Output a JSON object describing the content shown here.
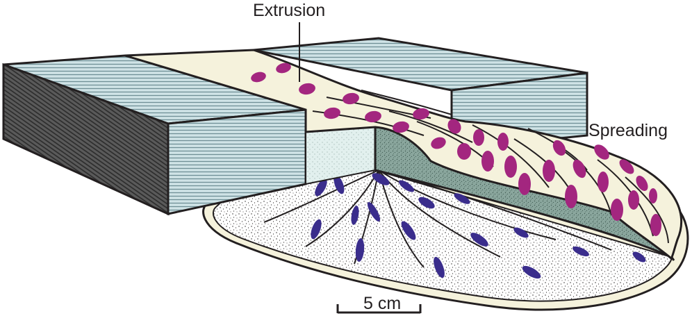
{
  "labels": {
    "extrusion": "Extrusion",
    "spreading": "Spreading",
    "scale": "5 cm"
  },
  "colors": {
    "outline": "#231f20",
    "block_top": "#cfe3e6",
    "block_stripes": "#6f8f95",
    "block_side_dark": "#4a4a4a",
    "channel": "#f5f2dc",
    "extruded_ellipses": "#a3267f",
    "basal_ellipses": "#3a2d8c",
    "stippled_base": "#ffffff",
    "cut_face": "#7f9b92",
    "back_face": "#e2f0ee"
  }
}
